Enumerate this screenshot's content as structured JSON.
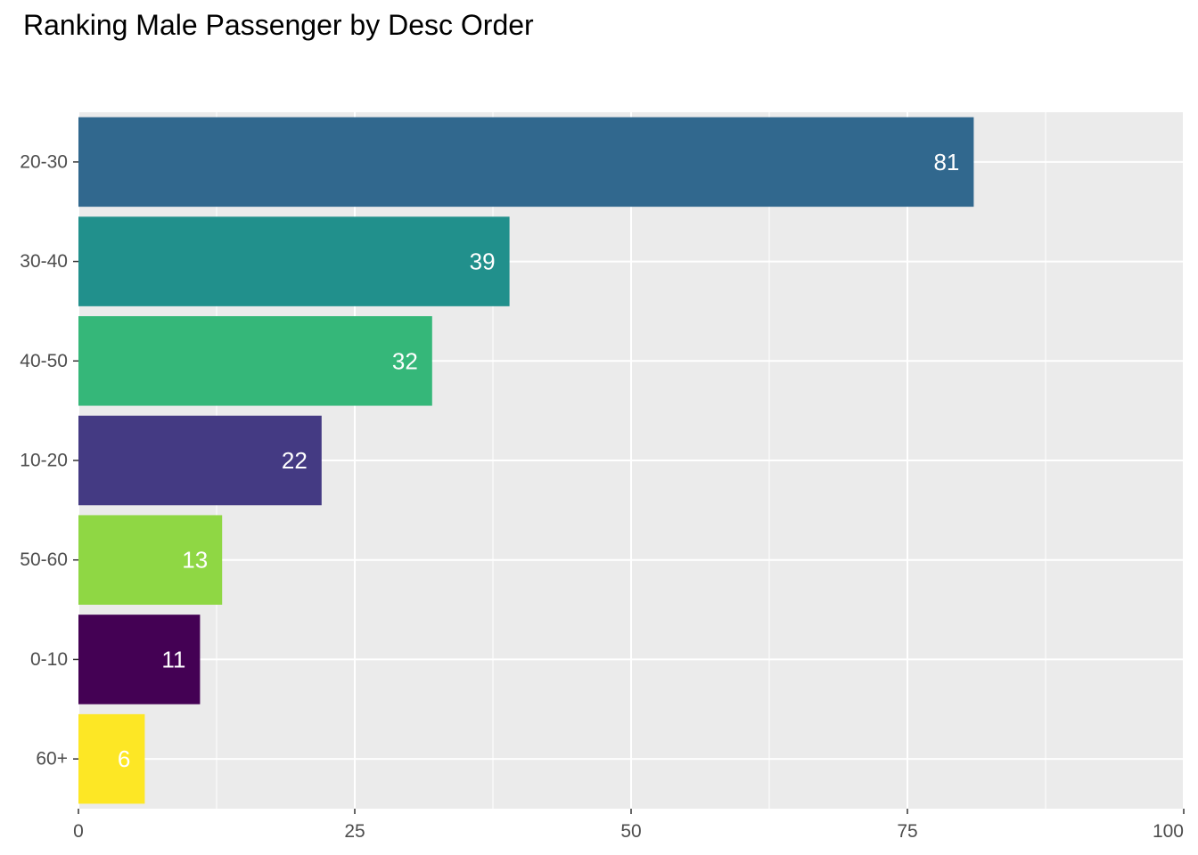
{
  "chart_data": {
    "type": "bar",
    "orientation": "horizontal",
    "title": "Ranking Male Passenger by Desc Order",
    "xlabel": "",
    "ylabel": "",
    "categories": [
      "20-30",
      "30-40",
      "40-50",
      "10-20",
      "50-60",
      "0-10",
      "60+"
    ],
    "values": [
      81,
      39,
      32,
      22,
      13,
      11,
      6
    ],
    "value_labels": [
      "81",
      "39",
      "32",
      "22",
      "13",
      "11",
      "6"
    ],
    "colors": [
      "#31688E",
      "#21908C",
      "#35B779",
      "#443A83",
      "#8FD744",
      "#440154",
      "#FDE725"
    ],
    "xlim": [
      0,
      100
    ],
    "xticks": [
      0,
      25,
      50,
      75,
      100
    ],
    "xtick_labels": [
      "0",
      "25",
      "50",
      "75",
      "100"
    ],
    "grid": true,
    "legend": "none"
  }
}
